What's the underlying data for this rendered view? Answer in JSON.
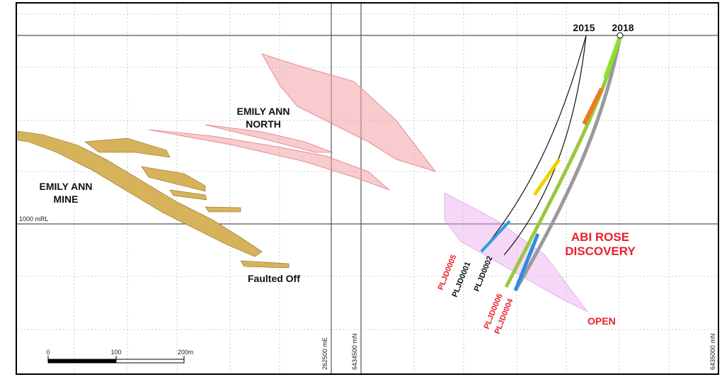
{
  "section": {
    "collars": [
      "2015",
      "2018"
    ],
    "level": "1000 mRL",
    "labels": {
      "emily_ann_north": [
        "EMILY ANN",
        "NORTH"
      ],
      "emily_ann_mine": [
        "EMILY ANN",
        "MINE"
      ],
      "faulted_off": "Faulted Off",
      "abi_rose": [
        "ABI ROSE",
        "DISCOVERY"
      ],
      "open": "OPEN"
    },
    "holes": [
      "PLJD0005",
      "PLJD0001",
      "PLJD0002",
      "PLJD0006",
      "PLJD0004"
    ],
    "coordinates": [
      "262500 mE",
      "6434500 mN",
      "6435000 mN"
    ],
    "scale": [
      "0",
      "100",
      "200m"
    ]
  }
}
